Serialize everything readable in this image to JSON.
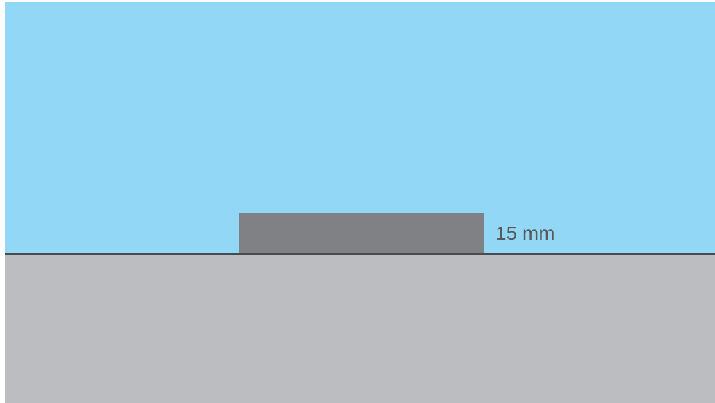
{
  "diagram": {
    "dimension_label": "15 mm",
    "colors": {
      "water": "#92d7f6",
      "ground": "#bcbdc0",
      "surface_line": "#4a4b4f",
      "block": "#808184",
      "label_text": "#58595b"
    }
  }
}
